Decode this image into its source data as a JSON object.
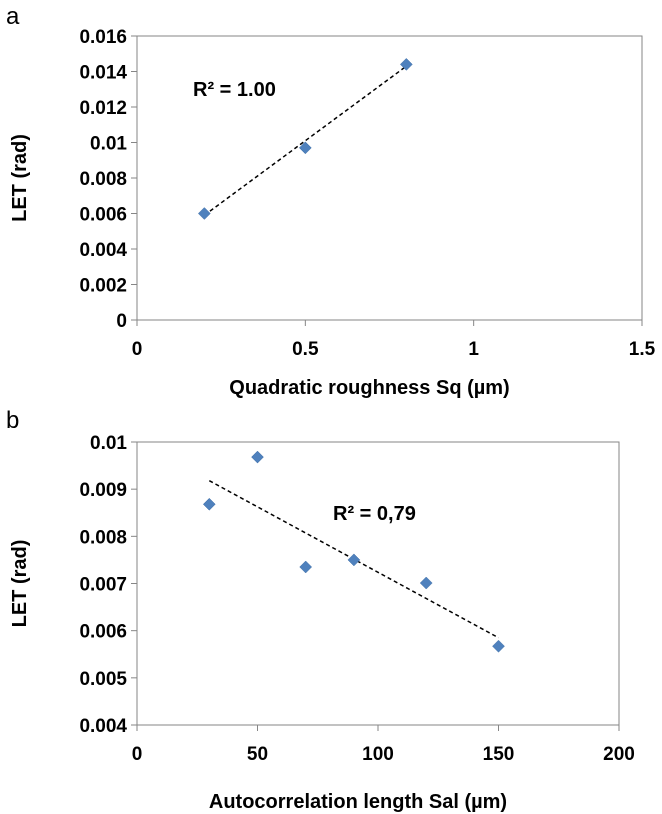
{
  "chart_data": [
    {
      "type": "scatter",
      "panel_label": "a",
      "xlabel": "Quadratic roughness Sq (µm)",
      "ylabel": "LET (rad)",
      "xlim": [
        0,
        1.5
      ],
      "ylim": [
        0,
        0.016
      ],
      "x_ticks": [
        "0",
        "0.5",
        "1",
        "1.5"
      ],
      "y_ticks": [
        "0",
        "0.002",
        "0.004",
        "0.006",
        "0.008",
        "0.01",
        "0.012",
        "0.014",
        "0.016"
      ],
      "x_tick_values": [
        0,
        0.5,
        1,
        1.5
      ],
      "y_tick_values": [
        0,
        0.002,
        0.004,
        0.006,
        0.008,
        0.01,
        0.012,
        0.014,
        0.016
      ],
      "points": [
        {
          "x": 0.2,
          "y": 0.006
        },
        {
          "x": 0.5,
          "y": 0.0097
        },
        {
          "x": 0.8,
          "y": 0.0144
        }
      ],
      "trendline": {
        "style": "dashed",
        "x": [
          0.2,
          0.8
        ],
        "y": [
          0.0059,
          0.0143
        ]
      },
      "annotation": "R² = 1.00",
      "grid": false,
      "marker_color": "#4f81bd"
    },
    {
      "type": "scatter",
      "panel_label": "b",
      "xlabel": "Autocorrelation length Sal (µm)",
      "ylabel": "LET (rad)",
      "xlim": [
        0,
        200
      ],
      "ylim": [
        0.004,
        0.01
      ],
      "x_ticks": [
        "0",
        "50",
        "100",
        "150",
        "200"
      ],
      "y_ticks": [
        "0.004",
        "0.005",
        "0.006",
        "0.007",
        "0.008",
        "0.009",
        "0.01"
      ],
      "x_tick_values": [
        0,
        50,
        100,
        150,
        200
      ],
      "y_tick_values": [
        0.004,
        0.005,
        0.006,
        0.007,
        0.008,
        0.009,
        0.01
      ],
      "points": [
        {
          "x": 30,
          "y": 0.00868
        },
        {
          "x": 50,
          "y": 0.00968
        },
        {
          "x": 70,
          "y": 0.00735
        },
        {
          "x": 90,
          "y": 0.0075
        },
        {
          "x": 120,
          "y": 0.00701
        },
        {
          "x": 150,
          "y": 0.00567
        }
      ],
      "trendline": {
        "style": "dashed",
        "x": [
          30,
          150
        ],
        "y": [
          0.00918,
          0.00585
        ]
      },
      "annotation": "R² = 0,79",
      "grid": false,
      "marker_color": "#4f81bd"
    }
  ]
}
